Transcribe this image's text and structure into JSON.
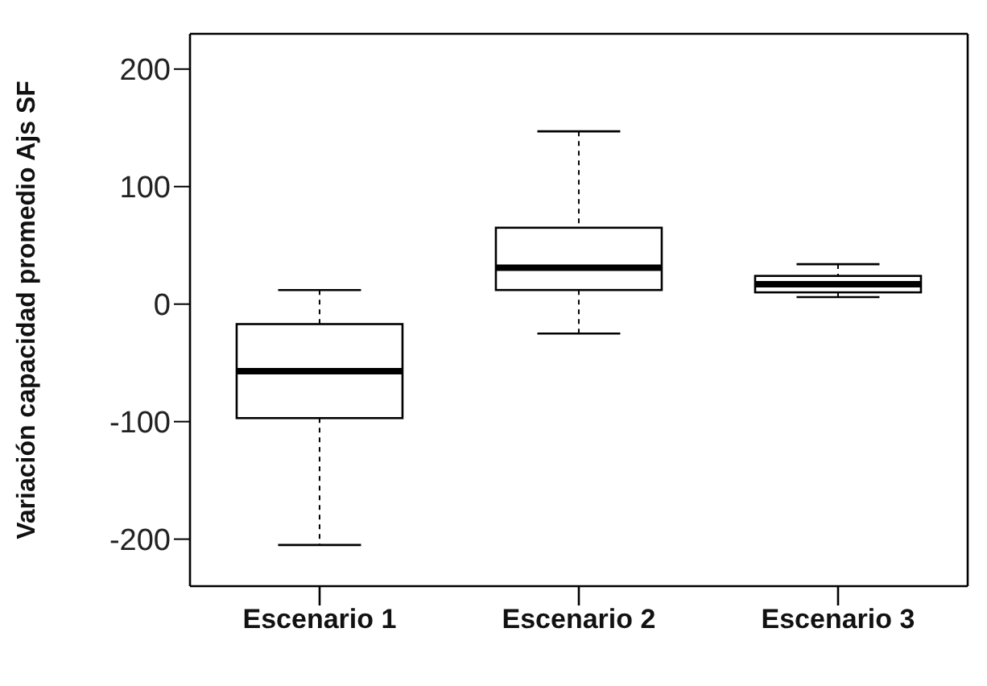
{
  "chart_data": {
    "type": "box",
    "ylabel": "Variación capacidad promedio Ajs SF",
    "categories": [
      "Escenario 1",
      "Escenario 2",
      "Escenario 3"
    ],
    "boxes": [
      {
        "low": -205,
        "q1": -97,
        "median": -57,
        "q3": -17,
        "high": 12
      },
      {
        "low": -25,
        "q1": 12,
        "median": 31,
        "q3": 65,
        "high": 147
      },
      {
        "low": 6,
        "q1": 10,
        "median": 17,
        "q3": 24,
        "high": 34
      }
    ],
    "ylim": [
      -240,
      230
    ],
    "yticks": [
      -200,
      -100,
      0,
      100,
      200
    ],
    "grid": false
  }
}
